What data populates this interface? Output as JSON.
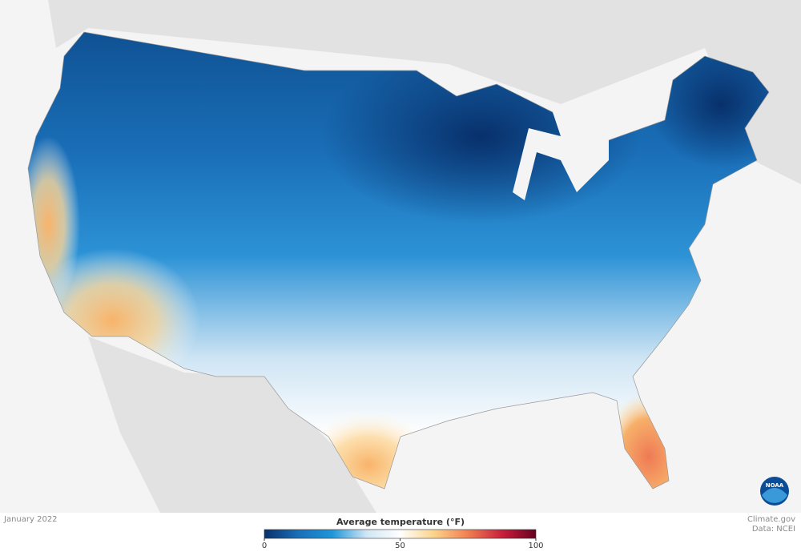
{
  "date": "January 2022",
  "legend": {
    "title": "Average temperature (°F)",
    "range": [
      0,
      100
    ],
    "ticks": [
      0,
      50,
      100
    ],
    "colors": [
      "#08306b",
      "#1a6fb8",
      "#1e96d8",
      "#cfe5f4",
      "#ffffff",
      "#fbd38a",
      "#f07f52",
      "#c8203c",
      "#67001f"
    ]
  },
  "credit": {
    "site": "Climate.gov",
    "source": "Data: NCEI"
  },
  "logo": "NOAA"
}
